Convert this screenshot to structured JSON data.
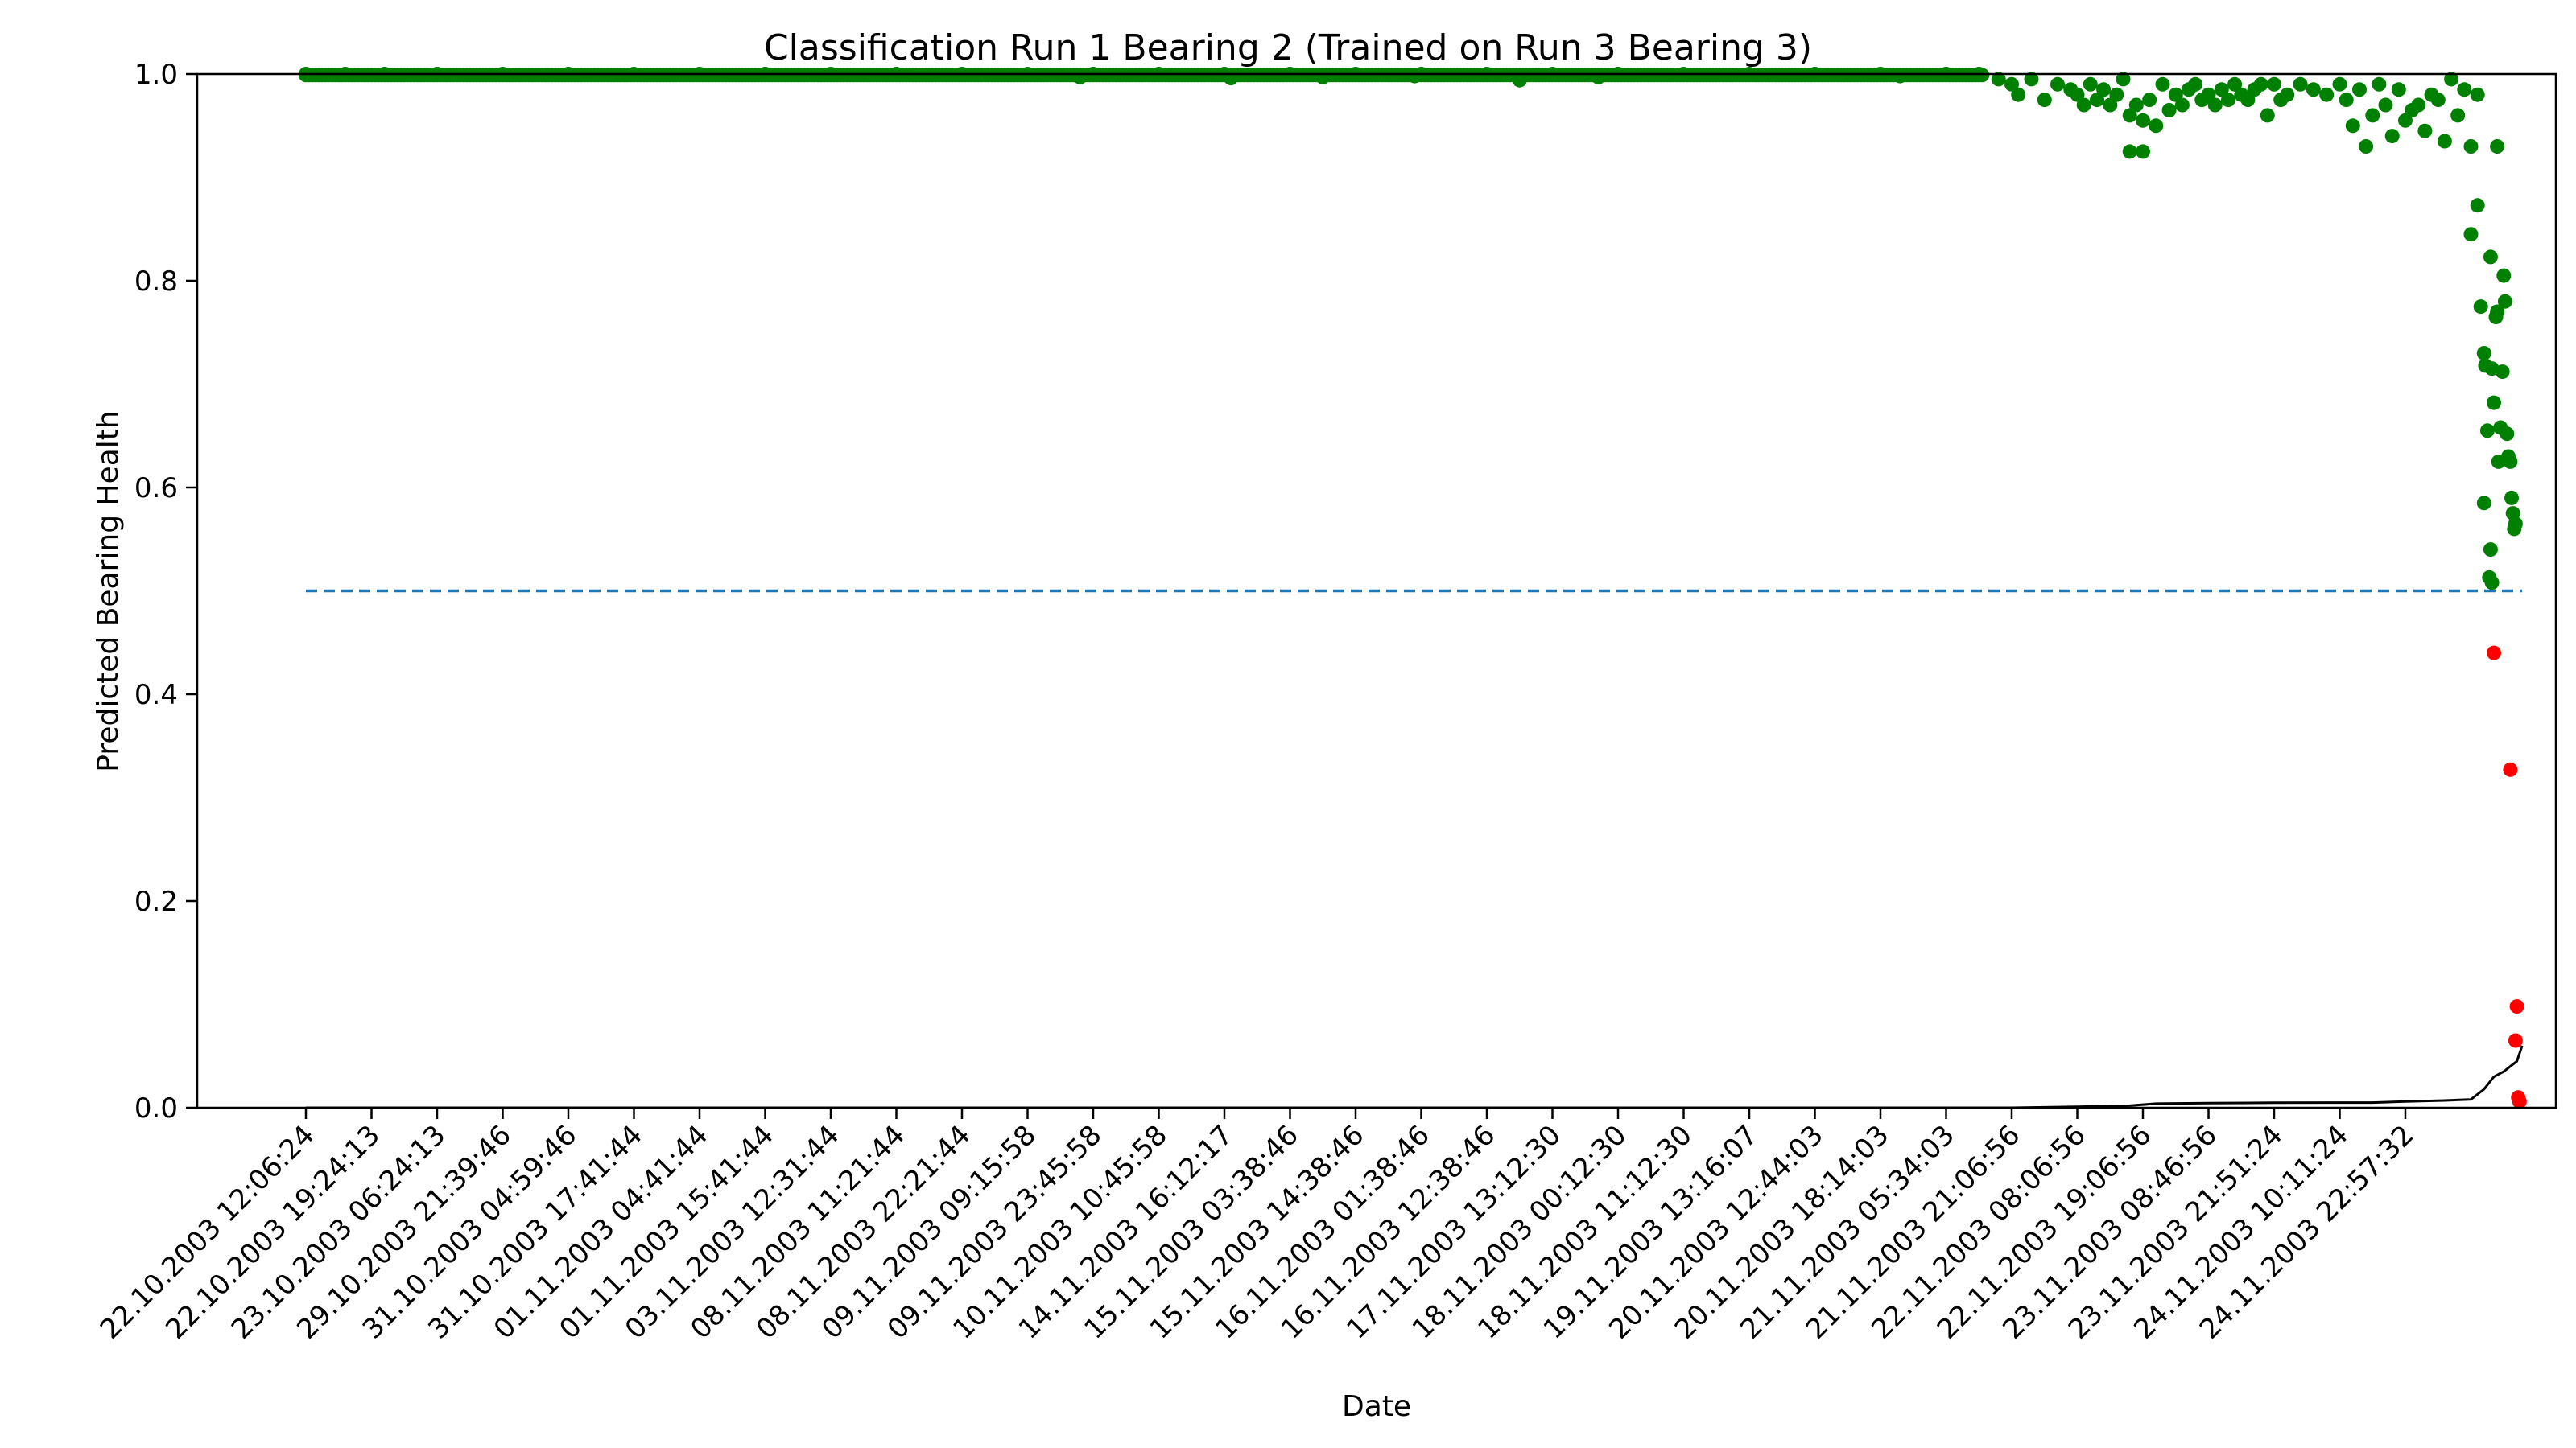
{
  "chart_data": {
    "type": "scatter",
    "title": "Classification Run 1 Bearing 2 (Trained on Run 3 Bearing 3)",
    "xlabel": "Date",
    "ylabel": "Predicted Bearing Health",
    "ylim": [
      0.0,
      1.0
    ],
    "yticks": [
      "0.0",
      "0.2",
      "0.4",
      "0.6",
      "0.8",
      "1.0"
    ],
    "grid": false,
    "x_categories": [
      "22.10.2003 12:06:24",
      "22.10.2003 19:24:13",
      "23.10.2003 06:24:13",
      "29.10.2003 21:39:46",
      "31.10.2003 04:59:46",
      "31.10.2003 17:41:44",
      "01.11.2003 04:41:44",
      "01.11.2003 15:41:44",
      "03.11.2003 12:31:44",
      "08.11.2003 11:21:44",
      "08.11.2003 22:21:44",
      "09.11.2003 09:15:58",
      "09.11.2003 23:45:58",
      "10.11.2003 10:45:58",
      "14.11.2003 16:12:17",
      "15.11.2003 03:38:46",
      "15.11.2003 14:38:46",
      "16.11.2003 01:38:46",
      "16.11.2003 12:38:46",
      "17.11.2003 13:12:30",
      "18.11.2003 00:12:30",
      "18.11.2003 11:12:30",
      "19.11.2003 13:16:07",
      "20.11.2003 12:44:03",
      "20.11.2003 18:14:03",
      "21.11.2003 05:34:03",
      "21.11.2003 21:06:56",
      "22.11.2003 08:06:56",
      "22.11.2003 19:06:56",
      "23.11.2003 08:46:56",
      "23.11.2003 21:51:24",
      "24.11.2003 10:11:24",
      "24.11.2003 22:57:32"
    ],
    "threshold": {
      "value": 0.5,
      "style": "dashed",
      "color": "#1f77b4"
    },
    "colors": {
      "healthy": "#008000",
      "faulty": "#ff0000",
      "curve": "#000000"
    },
    "series": [
      {
        "marker": "point",
        "color": "#008000",
        "points": [
          [
            0.0,
            1.0
          ],
          [
            0.6,
            1.0
          ],
          [
            1.2,
            1.0
          ],
          [
            2.0,
            1.0
          ],
          [
            3.0,
            1.0
          ],
          [
            4.0,
            1.0
          ],
          [
            5.0,
            1.0
          ],
          [
            6.0,
            1.0
          ],
          [
            7.0,
            1.0
          ],
          [
            8.0,
            1.0
          ],
          [
            9.0,
            1.0
          ],
          [
            10.0,
            1.0
          ],
          [
            11.0,
            1.0
          ],
          [
            11.8,
            0.997
          ],
          [
            12.0,
            1.0
          ],
          [
            13.0,
            1.0
          ],
          [
            14.0,
            1.0
          ],
          [
            14.1,
            0.996
          ],
          [
            15.0,
            1.0
          ],
          [
            15.5,
            0.997
          ],
          [
            16.0,
            1.0
          ],
          [
            16.9,
            0.998
          ],
          [
            17.0,
            1.0
          ],
          [
            18.0,
            1.0
          ],
          [
            18.5,
            0.994
          ],
          [
            19.0,
            1.0
          ],
          [
            19.7,
            0.997
          ],
          [
            20.0,
            1.0
          ],
          [
            21.0,
            1.0
          ],
          [
            22.0,
            1.0
          ],
          [
            23.0,
            1.0
          ],
          [
            24.0,
            1.0
          ],
          [
            24.3,
            0.998
          ],
          [
            25.0,
            1.0
          ],
          [
            25.5,
            1.0
          ],
          [
            25.8,
            0.995
          ],
          [
            26.0,
            0.99
          ],
          [
            26.1,
            0.98
          ],
          [
            26.3,
            0.995
          ],
          [
            26.5,
            0.975
          ],
          [
            26.7,
            0.99
          ],
          [
            26.9,
            0.985
          ],
          [
            27.0,
            0.98
          ],
          [
            27.1,
            0.97
          ],
          [
            27.2,
            0.99
          ],
          [
            27.3,
            0.975
          ],
          [
            27.4,
            0.985
          ],
          [
            27.5,
            0.97
          ],
          [
            27.6,
            0.98
          ],
          [
            27.7,
            0.995
          ],
          [
            27.8,
            0.96
          ],
          [
            27.9,
            0.97
          ],
          [
            28.0,
            0.955
          ],
          [
            28.1,
            0.975
          ],
          [
            28.2,
            0.95
          ],
          [
            28.3,
            0.99
          ],
          [
            28.4,
            0.965
          ],
          [
            28.5,
            0.98
          ],
          [
            28.6,
            0.97
          ],
          [
            28.7,
            0.985
          ],
          [
            28.8,
            0.99
          ],
          [
            28.9,
            0.975
          ],
          [
            29.0,
            0.98
          ],
          [
            29.1,
            0.97
          ],
          [
            29.2,
            0.985
          ],
          [
            29.3,
            0.975
          ],
          [
            29.4,
            0.99
          ],
          [
            29.5,
            0.98
          ],
          [
            29.6,
            0.975
          ],
          [
            29.7,
            0.985
          ],
          [
            29.8,
            0.99
          ],
          [
            29.9,
            0.96
          ],
          [
            30.0,
            0.99
          ],
          [
            30.1,
            0.975
          ],
          [
            30.2,
            0.98
          ],
          [
            30.4,
            0.99
          ],
          [
            30.6,
            0.985
          ],
          [
            30.8,
            0.98
          ],
          [
            31.0,
            0.99
          ],
          [
            31.1,
            0.975
          ],
          [
            31.2,
            0.95
          ],
          [
            31.3,
            0.985
          ],
          [
            31.4,
            0.93
          ],
          [
            31.5,
            0.96
          ],
          [
            31.6,
            0.99
          ],
          [
            31.7,
            0.97
          ],
          [
            31.8,
            0.94
          ],
          [
            31.9,
            0.985
          ],
          [
            32.0,
            0.955
          ],
          [
            32.1,
            0.965
          ],
          [
            32.2,
            0.97
          ],
          [
            32.3,
            0.945
          ],
          [
            32.4,
            0.98
          ],
          [
            32.5,
            0.975
          ],
          [
            32.6,
            0.935
          ],
          [
            32.7,
            0.995
          ],
          [
            32.8,
            0.96
          ],
          [
            32.9,
            0.985
          ],
          [
            33.0,
            0.93
          ],
          [
            33.1,
            0.98
          ],
          [
            27.8,
            0.925
          ],
          [
            28.0,
            0.925
          ],
          [
            33.4,
            0.93
          ],
          [
            33.0,
            0.845
          ],
          [
            33.1,
            0.873
          ],
          [
            33.15,
            0.775
          ],
          [
            33.2,
            0.73
          ],
          [
            33.22,
            0.718
          ],
          [
            33.25,
            0.655
          ],
          [
            33.3,
            0.823
          ],
          [
            33.32,
            0.715
          ],
          [
            33.35,
            0.682
          ],
          [
            33.38,
            0.765
          ],
          [
            33.4,
            0.77
          ],
          [
            33.42,
            0.625
          ],
          [
            33.45,
            0.658
          ],
          [
            33.48,
            0.712
          ],
          [
            33.5,
            0.805
          ],
          [
            33.52,
            0.78
          ],
          [
            33.55,
            0.652
          ],
          [
            33.57,
            0.63
          ],
          [
            33.6,
            0.625
          ],
          [
            33.62,
            0.59
          ],
          [
            33.64,
            0.575
          ],
          [
            33.66,
            0.56
          ],
          [
            33.68,
            0.565
          ],
          [
            33.2,
            0.585
          ],
          [
            33.3,
            0.54
          ],
          [
            33.28,
            0.513
          ],
          [
            33.32,
            0.508
          ]
        ]
      },
      {
        "marker": "point",
        "color": "#ff0000",
        "points": [
          [
            33.35,
            0.44
          ],
          [
            33.6,
            0.327
          ],
          [
            33.7,
            0.098
          ],
          [
            33.68,
            0.065
          ],
          [
            33.72,
            0.01
          ],
          [
            33.74,
            0.006
          ]
        ]
      },
      {
        "marker": "line",
        "color": "#000000",
        "points": [
          [
            0,
            0
          ],
          [
            26.0,
            0.0
          ],
          [
            27.0,
            0.001
          ],
          [
            27.8,
            0.002
          ],
          [
            28.2,
            0.004
          ],
          [
            29.0,
            0.0045
          ],
          [
            30.0,
            0.0048
          ],
          [
            31.0,
            0.005
          ],
          [
            31.5,
            0.005
          ],
          [
            32.0,
            0.006
          ],
          [
            32.6,
            0.007
          ],
          [
            33.0,
            0.008
          ],
          [
            33.2,
            0.018
          ],
          [
            33.35,
            0.03
          ],
          [
            33.5,
            0.035
          ],
          [
            33.6,
            0.04
          ],
          [
            33.7,
            0.045
          ],
          [
            33.78,
            0.06
          ]
        ]
      }
    ]
  }
}
